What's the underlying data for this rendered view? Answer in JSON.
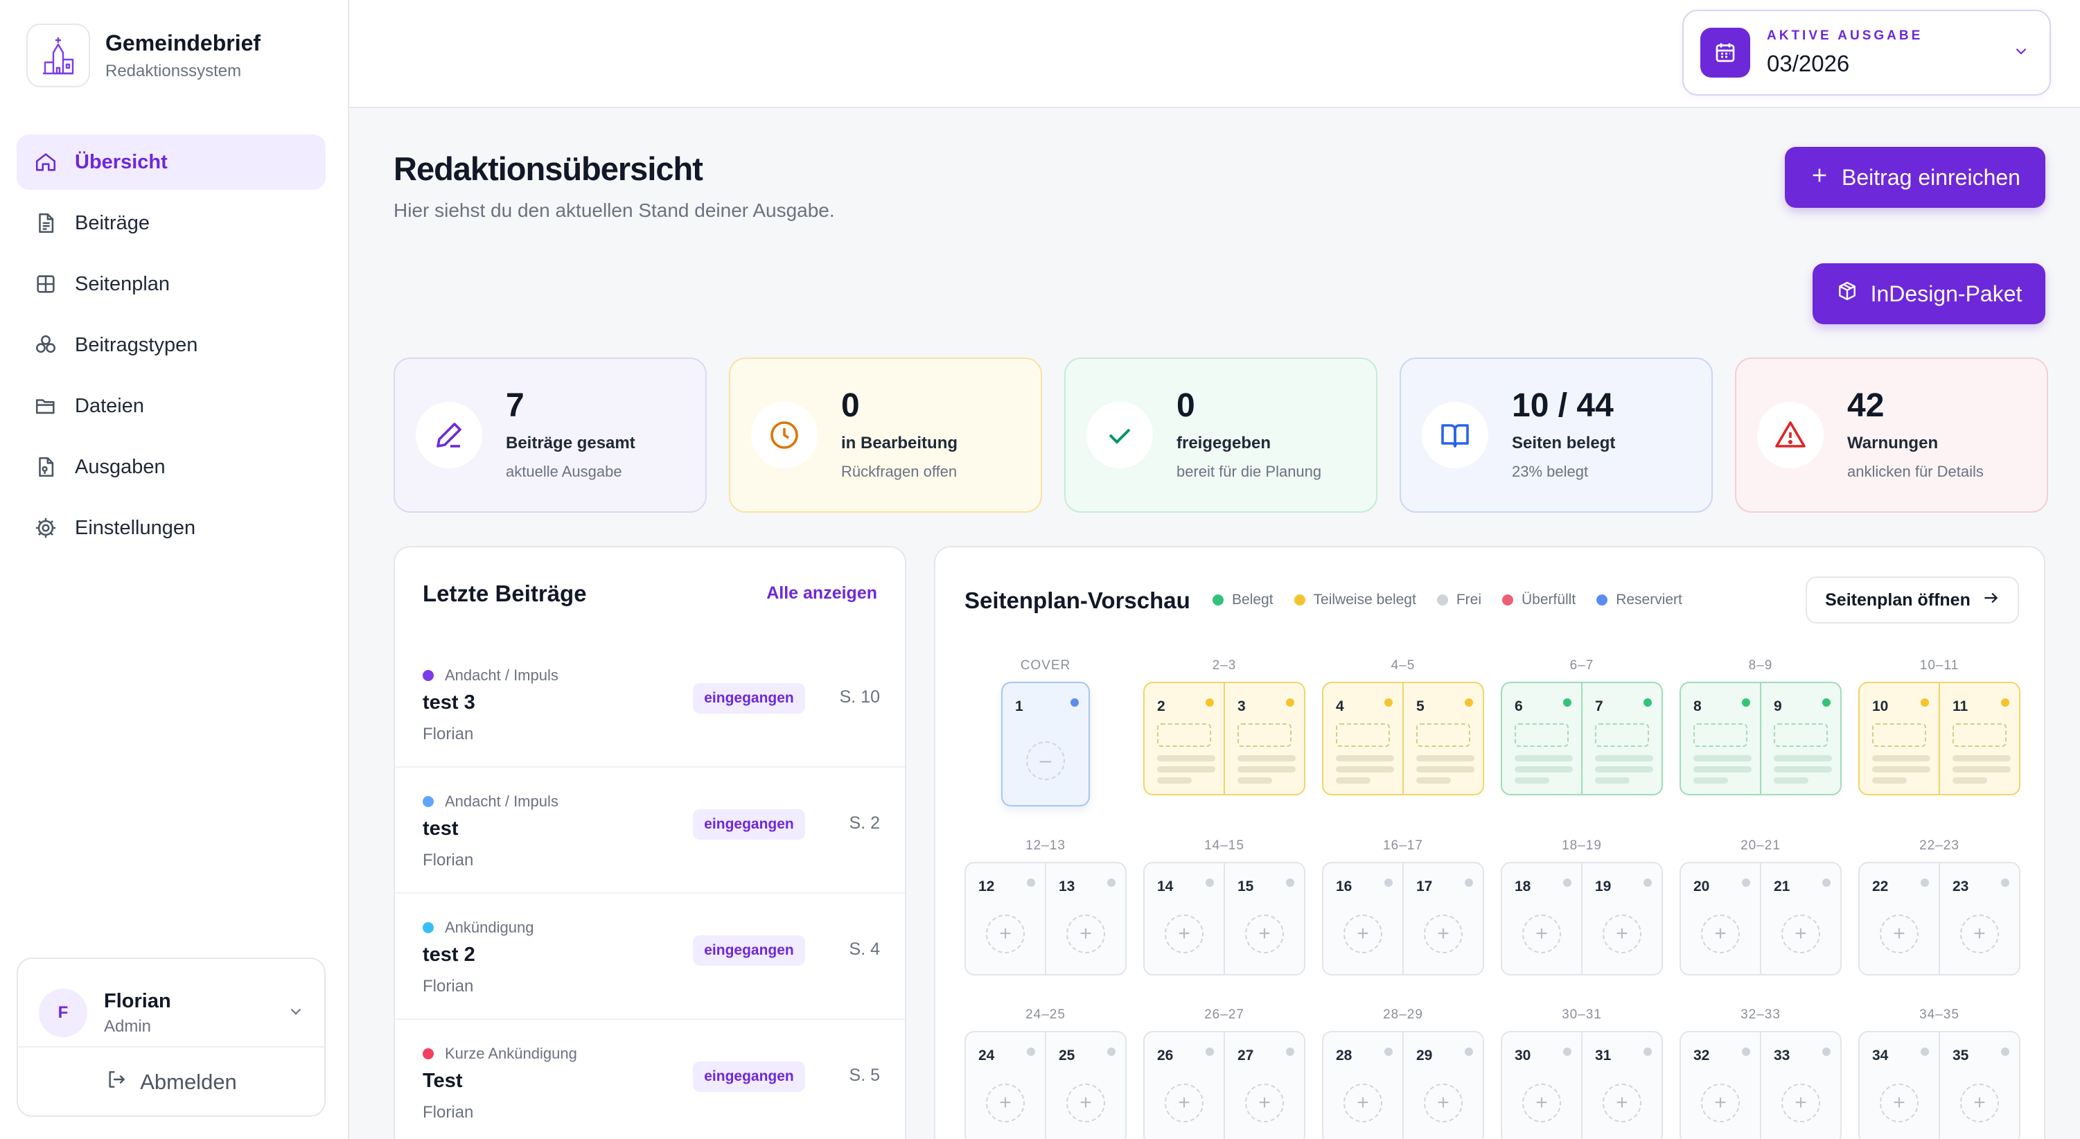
{
  "brand": {
    "title": "Gemeindebrief",
    "subtitle": "Redaktionssystem"
  },
  "nav": [
    {
      "label": "Übersicht",
      "icon": "home-icon",
      "active": true
    },
    {
      "label": "Beiträge",
      "icon": "document-icon"
    },
    {
      "label": "Seitenplan",
      "icon": "grid-icon"
    },
    {
      "label": "Beitragstypen",
      "icon": "shapes-icon"
    },
    {
      "label": "Dateien",
      "icon": "folder-icon"
    },
    {
      "label": "Ausgaben",
      "icon": "issue-icon"
    },
    {
      "label": "Einstellungen",
      "icon": "gear-icon"
    }
  ],
  "user": {
    "initial": "F",
    "name": "Florian",
    "role": "Admin",
    "logout": "Abmelden"
  },
  "issue": {
    "label": "AKTIVE AUSGABE",
    "value": "03/2026"
  },
  "header": {
    "title": "Redaktionsübersicht",
    "subtitle": "Hier siehst du den aktuellen Stand deiner Ausgabe.",
    "submit_label": "Beitrag einreichen",
    "indesign_label": "InDesign-Paket"
  },
  "stats": [
    {
      "value": "7",
      "label": "Beiträge gesamt",
      "hint": "aktuelle Ausgabe",
      "icon": "pencil-icon",
      "color": "#6d28d9"
    },
    {
      "value": "0",
      "label": "in Bearbeitung",
      "hint": "Rückfragen offen",
      "icon": "clock-icon",
      "color": "#d97706"
    },
    {
      "value": "0",
      "label": "freigegeben",
      "hint": "bereit für die Planung",
      "icon": "check-icon",
      "color": "#059669"
    },
    {
      "value": "10 / 44",
      "label": "Seiten belegt",
      "hint": "23% belegt",
      "icon": "book-icon",
      "color": "#2563eb"
    },
    {
      "value": "42",
      "label": "Warnungen",
      "hint": "anklicken für Details",
      "icon": "warning-icon",
      "color": "#dc2626"
    }
  ],
  "recent": {
    "title": "Letzte Beiträge",
    "link": "Alle anzeigen",
    "posts": [
      {
        "category": "Andacht / Impuls",
        "dot": "#7c3aed",
        "title": "test 3",
        "author": "Florian",
        "status": "eingegangen",
        "page": "S. 10"
      },
      {
        "category": "Andacht / Impuls",
        "dot": "#60a5fa",
        "title": "test",
        "author": "Florian",
        "status": "eingegangen",
        "page": "S. 2"
      },
      {
        "category": "Ankündigung",
        "dot": "#38bdf8",
        "title": "test 2",
        "author": "Florian",
        "status": "eingegangen",
        "page": "S. 4"
      },
      {
        "category": "Kurze Ankündigung",
        "dot": "#f43f5e",
        "title": "Test",
        "author": "Florian",
        "status": "eingegangen",
        "page": "S. 5"
      }
    ]
  },
  "plan": {
    "title": "Seitenplan-Vorschau",
    "open_label": "Seitenplan öffnen",
    "legend": [
      {
        "label": "Belegt",
        "color": "#34c27a"
      },
      {
        "label": "Teilweise belegt",
        "color": "#f4c430"
      },
      {
        "label": "Frei",
        "color": "#cfd3da"
      },
      {
        "label": "Überfüllt",
        "color": "#ef5f73"
      },
      {
        "label": "Reserviert",
        "color": "#5b8def"
      }
    ],
    "cover": {
      "label": "COVER",
      "page": "1",
      "status": "reserved"
    },
    "spreads": [
      {
        "label": "2–3",
        "pages": [
          "2",
          "3"
        ],
        "status": "partial"
      },
      {
        "label": "4–5",
        "pages": [
          "4",
          "5"
        ],
        "status": "partial"
      },
      {
        "label": "6–7",
        "pages": [
          "6",
          "7"
        ],
        "status": "full"
      },
      {
        "label": "8–9",
        "pages": [
          "8",
          "9"
        ],
        "status": "full"
      },
      {
        "label": "10–11",
        "pages": [
          "10",
          "11"
        ],
        "status": "partial"
      },
      {
        "label": "12–13",
        "pages": [
          "12",
          "13"
        ],
        "status": "free"
      },
      {
        "label": "14–15",
        "pages": [
          "14",
          "15"
        ],
        "status": "free"
      },
      {
        "label": "16–17",
        "pages": [
          "16",
          "17"
        ],
        "status": "free"
      },
      {
        "label": "18–19",
        "pages": [
          "18",
          "19"
        ],
        "status": "free"
      },
      {
        "label": "20–21",
        "pages": [
          "20",
          "21"
        ],
        "status": "free"
      },
      {
        "label": "22–23",
        "pages": [
          "22",
          "23"
        ],
        "status": "free"
      },
      {
        "label": "24–25",
        "pages": [
          "24",
          "25"
        ],
        "status": "free"
      },
      {
        "label": "26–27",
        "pages": [
          "26",
          "27"
        ],
        "status": "free"
      },
      {
        "label": "28–29",
        "pages": [
          "28",
          "29"
        ],
        "status": "free"
      },
      {
        "label": "30–31",
        "pages": [
          "30",
          "31"
        ],
        "status": "free"
      },
      {
        "label": "32–33",
        "pages": [
          "32",
          "33"
        ],
        "status": "free"
      },
      {
        "label": "34–35",
        "pages": [
          "34",
          "35"
        ],
        "status": "free"
      }
    ]
  }
}
